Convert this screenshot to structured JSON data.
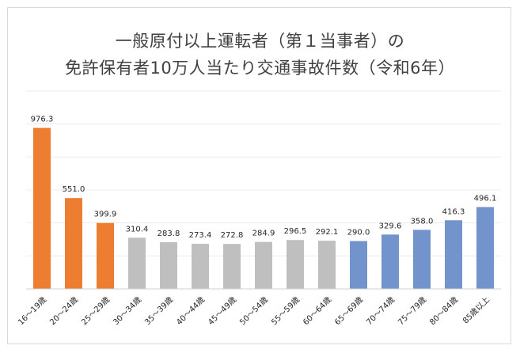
{
  "title": {
    "line1": "一般原付以上運転者（第１当事者）の",
    "line2": "免許保有者10万人当たり交通事故件数（令和6年）"
  },
  "chart_data": {
    "type": "bar",
    "categories": [
      "16～19歳",
      "20～24歳",
      "25～29歳",
      "30～34歳",
      "35～39歳",
      "40～44歳",
      "45～49歳",
      "50～54歳",
      "55～59歳",
      "60～64歳",
      "65～69歳",
      "70～74歳",
      "75～79歳",
      "80～84歳",
      "85歳以上"
    ],
    "values": [
      976.3,
      551.0,
      399.9,
      310.4,
      283.8,
      273.4,
      272.8,
      284.9,
      296.5,
      292.1,
      290.0,
      329.6,
      358.0,
      416.3,
      496.1
    ],
    "value_labels": [
      "976.3",
      "551.0",
      "399.9",
      "310.4",
      "283.8",
      "273.4",
      "272.8",
      "284.9",
      "296.5",
      "292.1",
      "290.0",
      "329.6",
      "358.0",
      "416.3",
      "496.1"
    ],
    "colors": [
      "#ed7d31",
      "#ed7d31",
      "#ed7d31",
      "#bfbfbf",
      "#bfbfbf",
      "#bfbfbf",
      "#bfbfbf",
      "#bfbfbf",
      "#bfbfbf",
      "#bfbfbf",
      "#7293cb",
      "#7293cb",
      "#7293cb",
      "#7293cb",
      "#7293cb"
    ],
    "ylim": [
      0,
      1200
    ],
    "grid": true,
    "legend": "none"
  }
}
